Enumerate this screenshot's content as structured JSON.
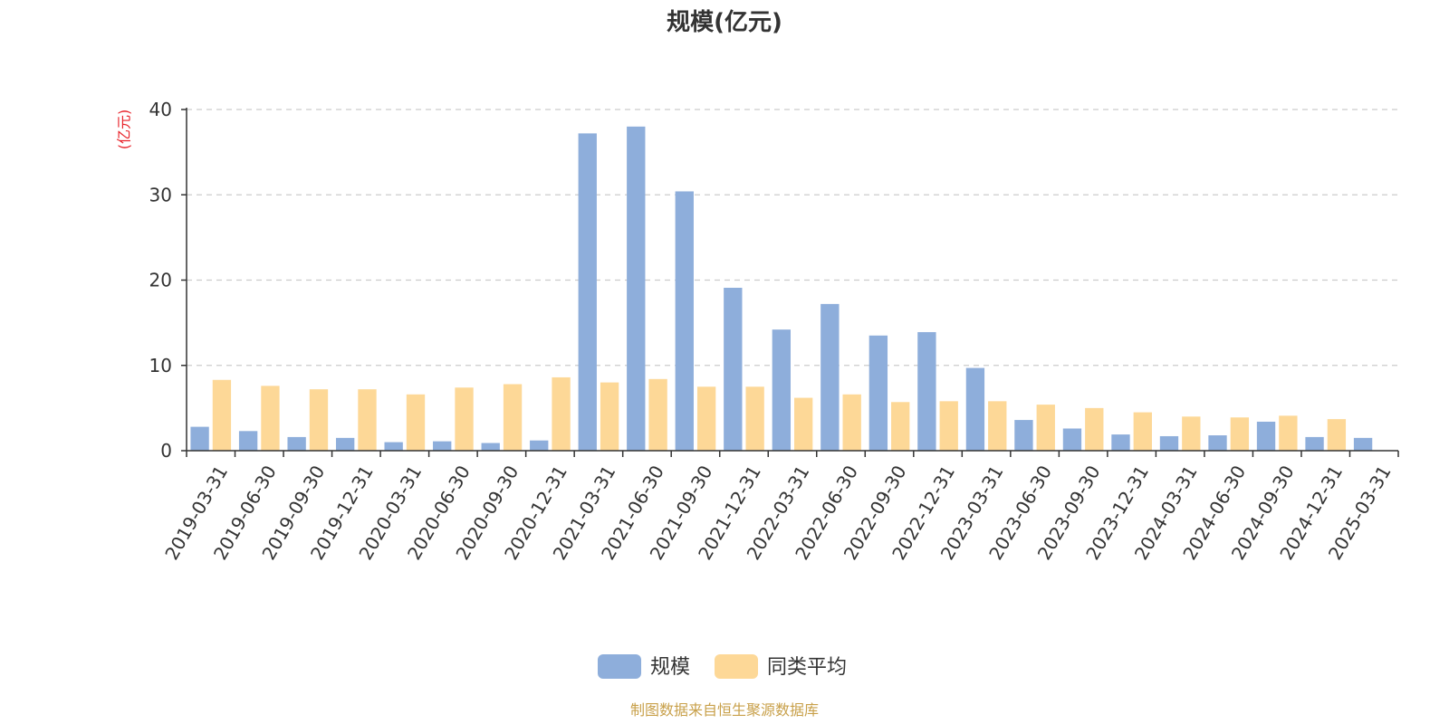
{
  "chart_data": {
    "type": "bar",
    "title": "规模(亿元)",
    "ylabel": "(亿元)",
    "ylim": [
      0,
      40
    ],
    "yticks": [
      0,
      10,
      20,
      30,
      40
    ],
    "grid": true,
    "legend_position": "bottom",
    "categories": [
      "2019-03-31",
      "2019-06-30",
      "2019-09-30",
      "2019-12-31",
      "2020-03-31",
      "2020-06-30",
      "2020-09-30",
      "2020-12-31",
      "2021-03-31",
      "2021-06-30",
      "2021-09-30",
      "2021-12-31",
      "2022-03-31",
      "2022-06-30",
      "2022-09-30",
      "2022-12-31",
      "2023-03-31",
      "2023-06-30",
      "2023-09-30",
      "2023-12-31",
      "2024-03-31",
      "2024-06-30",
      "2024-09-30",
      "2024-12-31",
      "2025-03-31"
    ],
    "series": [
      {
        "name": "规模",
        "color": "#8eaedb",
        "values": [
          2.8,
          2.3,
          1.6,
          1.5,
          1.0,
          1.1,
          0.9,
          1.2,
          37.2,
          38.0,
          30.4,
          19.1,
          14.2,
          17.2,
          13.5,
          13.9,
          9.7,
          3.6,
          2.6,
          1.9,
          1.7,
          1.8,
          3.4,
          1.6,
          1.5
        ]
      },
      {
        "name": "同类平均",
        "color": "#fdd897",
        "values": [
          8.3,
          7.6,
          7.2,
          7.2,
          6.6,
          7.4,
          7.8,
          8.6,
          8.0,
          8.4,
          7.5,
          7.5,
          6.2,
          6.6,
          5.7,
          5.8,
          5.8,
          5.4,
          5.0,
          4.5,
          4.0,
          3.9,
          4.1,
          3.7,
          null
        ]
      }
    ],
    "source_text": "制图数据来自恒生聚源数据库",
    "unit_color": "#e8232a",
    "source_color": "#c8a04a"
  }
}
